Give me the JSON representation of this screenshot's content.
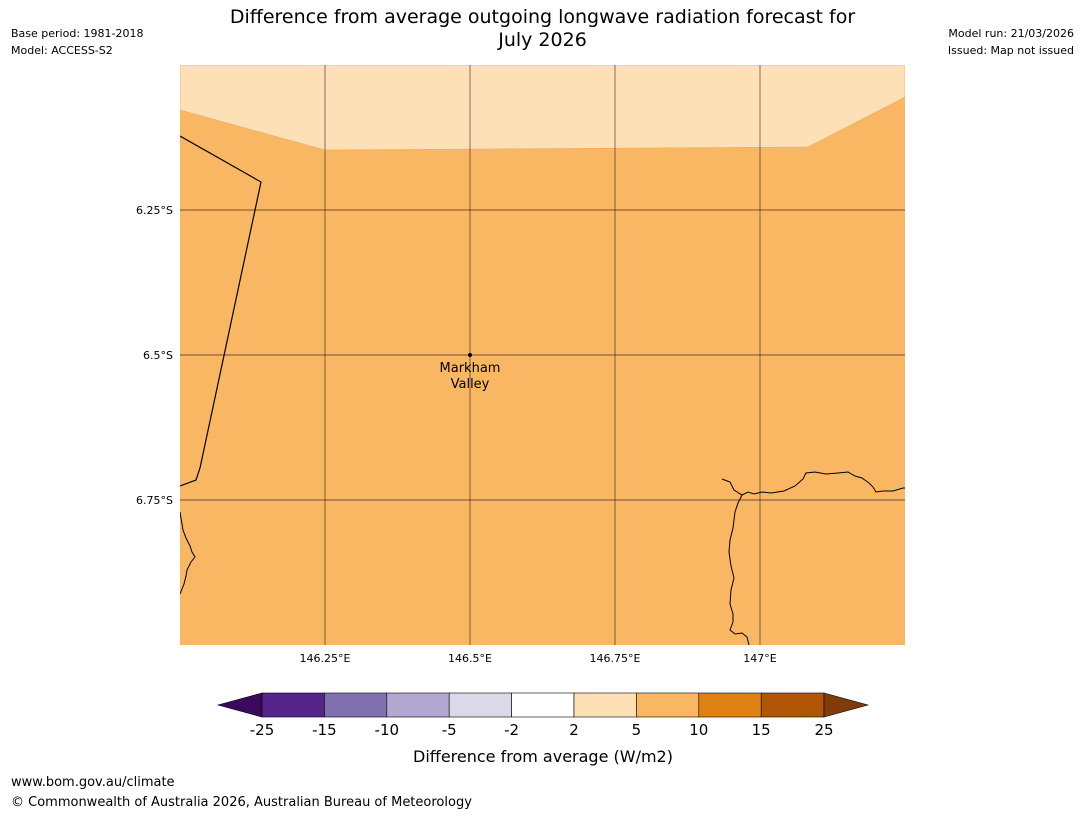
{
  "header": {
    "title_line1": "Difference from average outgoing longwave radiation forecast for",
    "title_line2": "July 2026",
    "base_period": "Base period: 1981-2018",
    "model": "Model: ACCESS-S2",
    "model_run": "Model run: 21/03/2026",
    "issued": "Issued: Map not issued"
  },
  "map": {
    "lat_labels": [
      "6.25°S",
      "6.5°S",
      "6.75°S"
    ],
    "lon_labels": [
      "146.25°E",
      "146.5°E",
      "146.75°E",
      "147°E"
    ],
    "place": {
      "name_line1": "Markham",
      "name_line2": "Valley",
      "lat": -6.5,
      "lon": 146.5
    },
    "fill_colors": {
      "light_band": "#fde0b6",
      "main": "#fab763"
    }
  },
  "colorbar": {
    "title": "Difference from average (W/m2)",
    "ticks": [
      "-25",
      "-15",
      "-10",
      "-5",
      "-2",
      "2",
      "5",
      "10",
      "15",
      "25"
    ],
    "colors": [
      "#3b0a5c",
      "#56238b",
      "#8070af",
      "#b1a7d1",
      "#d9d9ea",
      "#ffffff",
      "#fde0b6",
      "#fab763",
      "#e08114",
      "#b05606",
      "#7f3b08"
    ]
  },
  "footer": {
    "url": "www.bom.gov.au/climate",
    "copyright": "© Commonwealth of Australia 2026, Australian Bureau of Meteorology"
  }
}
